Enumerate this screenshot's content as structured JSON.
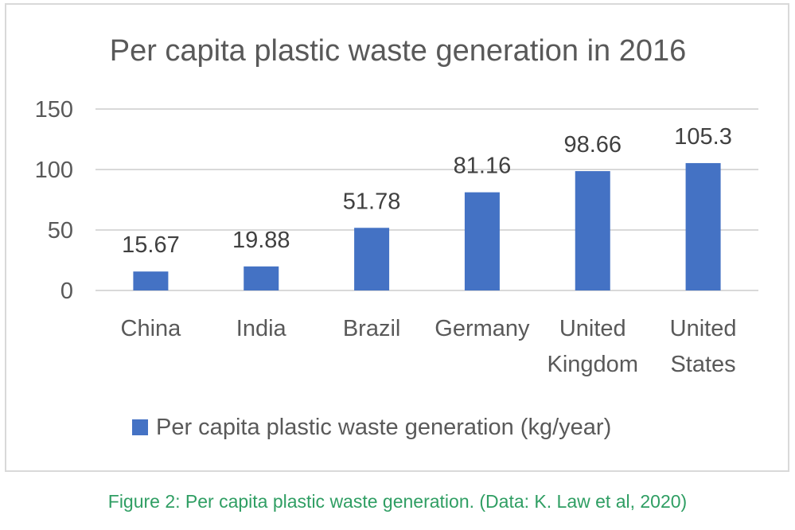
{
  "chart_data": {
    "type": "bar",
    "title": "Per capita plastic waste generation in 2016",
    "categories": [
      [
        "China"
      ],
      [
        "India"
      ],
      [
        "Brazil"
      ],
      [
        "Germany"
      ],
      [
        "United",
        "Kingdom"
      ],
      [
        "United",
        "States"
      ]
    ],
    "series": [
      {
        "name": "Per capita plastic waste generation (kg/year)",
        "values": [
          15.67,
          19.88,
          51.78,
          81.16,
          98.66,
          105.3
        ],
        "labels": [
          "15.67",
          "19.88",
          "51.78",
          "81.16",
          "98.66",
          "105.3"
        ],
        "color": "#4472c4"
      }
    ],
    "ylim": [
      0,
      150
    ],
    "yticks": [
      "0",
      "50",
      "100",
      "150"
    ],
    "grid": true,
    "legend_position": "bottom"
  },
  "caption": "Figure 2: Per capita plastic waste generation. (Data: K. Law et al, 2020)"
}
